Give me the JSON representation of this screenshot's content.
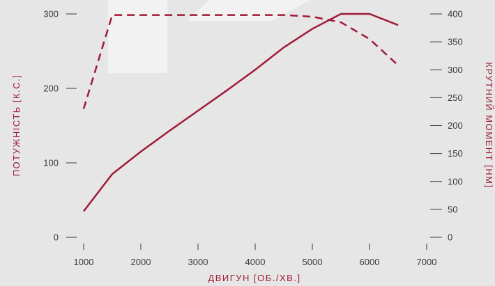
{
  "colors": {
    "background": "#e6e6e6",
    "watermark": "#f2f2f2",
    "series": "#a01a36",
    "text": "#3a3a3a"
  },
  "chart_data": {
    "type": "line",
    "xlabel": "ДВИГУН [ОБ./ХВ.]",
    "ylabel_left": "ПОТУЖНІСТЬ [К.С.]",
    "ylabel_right": "КРУТНИЙ МОМЕНТ [НМ]",
    "xlim": [
      1000,
      7000
    ],
    "ylim_left": [
      0,
      300
    ],
    "ylim_right": [
      0,
      400
    ],
    "x_ticks": [
      "1000",
      "2000",
      "3000",
      "4000",
      "5000",
      "6000",
      "7000"
    ],
    "y_left_ticks": [
      "0",
      "100",
      "200",
      "300"
    ],
    "y_right_ticks": [
      "0",
      "50",
      "100",
      "150",
      "200",
      "250",
      "300",
      "350",
      "400"
    ],
    "grid": false,
    "legend": "none",
    "series": [
      {
        "axis": "left",
        "style": "solid",
        "x": [
          1000,
          1500,
          2000,
          2500,
          3000,
          3500,
          4000,
          4500,
          5000,
          5500,
          6000,
          6500
        ],
        "values": [
          35,
          85,
          115,
          143,
          170,
          197,
          225,
          255,
          280,
          300,
          300,
          285
        ]
      },
      {
        "axis": "right",
        "style": "dashed",
        "x": [
          1000,
          1500,
          2000,
          3000,
          4000,
          4500,
          5000,
          5500,
          6000,
          6500
        ],
        "values": [
          230,
          398,
          398,
          398,
          398,
          398,
          395,
          385,
          355,
          308
        ]
      }
    ]
  }
}
